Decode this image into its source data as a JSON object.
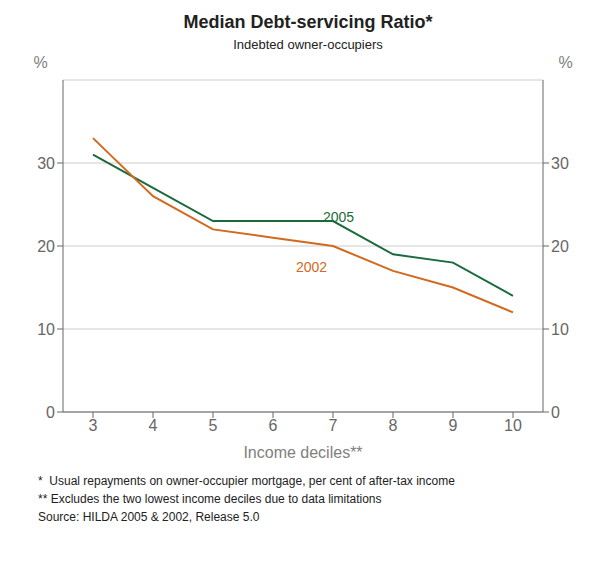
{
  "chart_data": {
    "type": "line",
    "title": "Median Debt-servicing Ratio*",
    "subtitle": "Indebted owner-occupiers",
    "xlabel": "Income deciles**",
    "ylabel": "%",
    "y2label": "%",
    "x": [
      3,
      4,
      5,
      6,
      7,
      8,
      9,
      10
    ],
    "series": [
      {
        "name": "2005",
        "color": "#1a6b3c",
        "values": [
          31,
          27,
          23,
          23,
          23,
          19,
          18,
          14
        ]
      },
      {
        "name": "2002",
        "color": "#d2691e",
        "values": [
          33,
          26,
          22,
          21,
          20,
          17,
          15,
          12
        ]
      }
    ],
    "xlim": [
      2.5,
      10.5
    ],
    "xticks": [
      3,
      4,
      5,
      6,
      7,
      8,
      9,
      10
    ],
    "ylim": [
      0,
      40
    ],
    "yticks": [
      0,
      10,
      20,
      30
    ],
    "y2lim": [
      0,
      40
    ],
    "y2ticks": [
      0,
      10,
      20,
      30
    ],
    "grid": "y",
    "annotations": [
      {
        "text": "2005",
        "x": 6.75,
        "y": 23.5,
        "color": "#1a6b3c"
      },
      {
        "text": "2002",
        "x": 6.3,
        "y": 17.5,
        "color": "#d2691e"
      }
    ],
    "notes": [
      "*  Usual repayments on owner-occupier mortgage, per cent of after-tax income",
      "** Excludes the two lowest income deciles due to data limitations",
      "Source: HILDA 2005 & 2002, Release 5.0"
    ]
  }
}
